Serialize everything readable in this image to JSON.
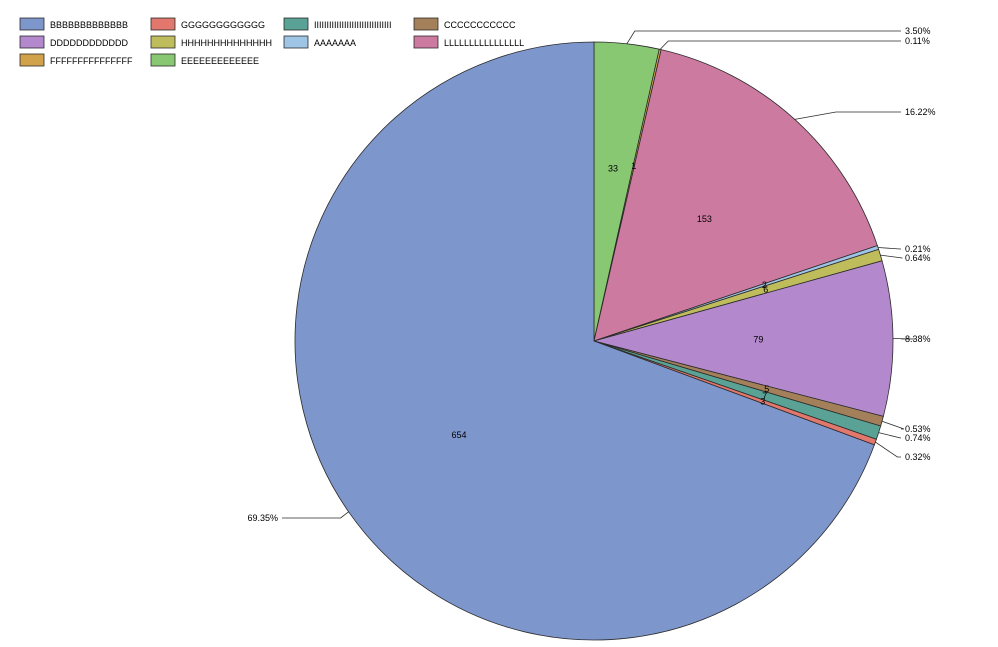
{
  "chart_data": {
    "type": "pie",
    "start_angle_deg": 0,
    "direction": "clockwise",
    "slices": [
      {
        "label": "EEEEEEEEEEEEE",
        "value": 33,
        "percent_label": "3.50%",
        "color": "#88c873"
      },
      {
        "label": "FFFFFFFFFFFFFFF",
        "value": 1,
        "percent_label": "0.11%",
        "color": "#d2a24a"
      },
      {
        "label": "LLLLLLLLLLLLLLLL",
        "value": 153,
        "percent_label": "16.22%",
        "color": "#cd7aa0"
      },
      {
        "label": "AAAAAAA",
        "value": 2,
        "percent_label": "0.21%",
        "color": "#9ec4e6"
      },
      {
        "label": "HHHHHHHHHHHHHH",
        "value": 6,
        "percent_label": "0.64%",
        "color": "#bfbc5c"
      },
      {
        "label": "DDDDDDDDDDDD",
        "value": 79,
        "percent_label": "8.38%",
        "color": "#b388cc"
      },
      {
        "label": "CCCCCCCCCCC",
        "value": 5,
        "percent_label": "0.53%",
        "color": "#a4805a"
      },
      {
        "label": "IIIIIIIIIIIIIIIIIIIIIIIIIIIIIII",
        "value": 7,
        "percent_label": "0.74%",
        "color": "#5aa295"
      },
      {
        "label": "GGGGGGGGGGGG",
        "value": 3,
        "percent_label": "0.32%",
        "color": "#e1776d"
      },
      {
        "label": "BBBBBBBBBBBBB",
        "value": 654,
        "percent_label": "69.35%",
        "color": "#7d96cc"
      }
    ],
    "legend": {
      "placement": "top-left",
      "order": [
        "BBBBBBBBBBBBB",
        "GGGGGGGGGGGG",
        "IIIIIIIIIIIIIIIIIIIIIIIIIIIIIII",
        "CCCCCCCCCCC",
        "DDDDDDDDDDDD",
        "HHHHHHHHHHHHHH",
        "AAAAAAA",
        "LLLLLLLLLLLLLLLL",
        "FFFFFFFFFFFFFFF",
        "EEEEEEEEEEEEE"
      ]
    }
  }
}
